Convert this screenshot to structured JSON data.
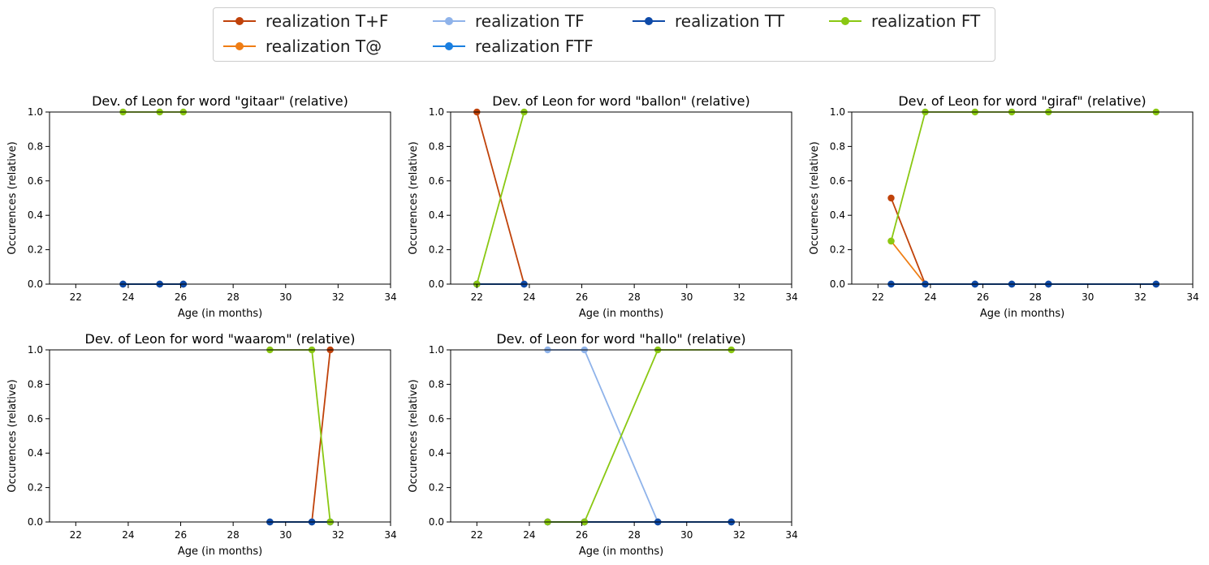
{
  "legend": {
    "series": [
      {
        "label": "realization T+F",
        "color": "#c0420a"
      },
      {
        "label": "realization T@",
        "color": "#ef7d14"
      },
      {
        "label": "realization TF",
        "color": "#8fb3ea"
      },
      {
        "label": "realization FTF",
        "color": "#1a7fe0"
      },
      {
        "label": "realization TT",
        "color": "#0e4aa8"
      },
      {
        "label": "realization FT",
        "color": "#8ac812"
      }
    ]
  },
  "chart_data": [
    {
      "type": "line",
      "title": "Dev. of Leon for word \"gitaar\" (relative)",
      "xlabel": "Age (in months)",
      "ylabel": "Occurences (relative)",
      "xlim": [
        21,
        34
      ],
      "ylim": [
        0,
        1
      ],
      "xticks": [
        "22",
        "24",
        "26",
        "28",
        "30",
        "32",
        "34"
      ],
      "yticks": [
        "0.0",
        "0.2",
        "0.4",
        "0.6",
        "0.8",
        "1.0"
      ],
      "x": [
        23.8,
        25.2,
        26.1
      ],
      "series": [
        {
          "name": "realization T+F",
          "values": [
            0,
            0,
            0
          ]
        },
        {
          "name": "realization T@",
          "values": [
            0,
            0,
            0
          ]
        },
        {
          "name": "realization TF",
          "values": [
            0,
            0,
            0
          ]
        },
        {
          "name": "realization FTF",
          "values": [
            0,
            0,
            0
          ]
        },
        {
          "name": "realization TT",
          "values": [
            0,
            0,
            0
          ]
        },
        {
          "name": "realization FT",
          "values": [
            1,
            1,
            1
          ]
        }
      ]
    },
    {
      "type": "line",
      "title": "Dev. of Leon for word \"ballon\" (relative)",
      "xlabel": "Age (in months)",
      "ylabel": "Occurences (relative)",
      "xlim": [
        21,
        34
      ],
      "ylim": [
        0,
        1
      ],
      "xticks": [
        "22",
        "24",
        "26",
        "28",
        "30",
        "32",
        "34"
      ],
      "yticks": [
        "0.0",
        "0.2",
        "0.4",
        "0.6",
        "0.8",
        "1.0"
      ],
      "x": [
        22.0,
        23.8
      ],
      "series": [
        {
          "name": "realization T+F",
          "values": [
            1,
            0
          ]
        },
        {
          "name": "realization T@",
          "values": [
            0,
            0
          ]
        },
        {
          "name": "realization TF",
          "values": [
            0,
            0
          ]
        },
        {
          "name": "realization FTF",
          "values": [
            0,
            0
          ]
        },
        {
          "name": "realization TT",
          "values": [
            0,
            0
          ]
        },
        {
          "name": "realization FT",
          "values": [
            0,
            1
          ]
        }
      ]
    },
    {
      "type": "line",
      "title": "Dev. of Leon for word \"giraf\" (relative)",
      "xlabel": "Age (in months)",
      "ylabel": "Occurences (relative)",
      "xlim": [
        21,
        34
      ],
      "ylim": [
        0,
        1
      ],
      "xticks": [
        "22",
        "24",
        "26",
        "28",
        "30",
        "32",
        "34"
      ],
      "yticks": [
        "0.0",
        "0.2",
        "0.4",
        "0.6",
        "0.8",
        "1.0"
      ],
      "x": [
        22.5,
        23.8,
        25.7,
        27.1,
        28.5,
        32.6
      ],
      "series": [
        {
          "name": "realization T+F",
          "values": [
            0.5,
            0,
            0,
            0,
            0,
            0
          ]
        },
        {
          "name": "realization T@",
          "values": [
            0.25,
            0,
            0,
            0,
            0,
            0
          ]
        },
        {
          "name": "realization TF",
          "values": [
            0,
            0,
            0,
            0,
            0,
            0
          ]
        },
        {
          "name": "realization FTF",
          "values": [
            0,
            0,
            0,
            0,
            0,
            0
          ]
        },
        {
          "name": "realization TT",
          "values": [
            0,
            0,
            0,
            0,
            0,
            0
          ]
        },
        {
          "name": "realization FT",
          "values": [
            0.25,
            1,
            1,
            1,
            1,
            1
          ]
        }
      ]
    },
    {
      "type": "line",
      "title": "Dev. of Leon for word \"waarom\" (relative)",
      "xlabel": "Age (in months)",
      "ylabel": "Occurences (relative)",
      "xlim": [
        21,
        34
      ],
      "ylim": [
        0,
        1
      ],
      "xticks": [
        "22",
        "24",
        "26",
        "28",
        "30",
        "32",
        "34"
      ],
      "yticks": [
        "0.0",
        "0.2",
        "0.4",
        "0.6",
        "0.8",
        "1.0"
      ],
      "x": [
        29.4,
        31.0,
        31.7
      ],
      "series": [
        {
          "name": "realization T+F",
          "values": [
            0,
            0,
            1
          ]
        },
        {
          "name": "realization T@",
          "values": [
            0,
            0,
            0
          ]
        },
        {
          "name": "realization TF",
          "values": [
            0,
            0,
            0
          ]
        },
        {
          "name": "realization FTF",
          "values": [
            0,
            0,
            0
          ]
        },
        {
          "name": "realization TT",
          "values": [
            0,
            0,
            0
          ]
        },
        {
          "name": "realization FT",
          "values": [
            1,
            1,
            0
          ]
        }
      ]
    },
    {
      "type": "line",
      "title": "Dev. of Leon for word \"hallo\" (relative)",
      "xlabel": "Age (in months)",
      "ylabel": "Occurences (relative)",
      "xlim": [
        21,
        34
      ],
      "ylim": [
        0,
        1
      ],
      "xticks": [
        "22",
        "24",
        "26",
        "28",
        "30",
        "32",
        "34"
      ],
      "yticks": [
        "0.0",
        "0.2",
        "0.4",
        "0.6",
        "0.8",
        "1.0"
      ],
      "x": [
        24.7,
        26.1,
        28.9,
        31.7
      ],
      "series": [
        {
          "name": "realization T+F",
          "values": [
            0,
            0,
            0,
            0
          ]
        },
        {
          "name": "realization T@",
          "values": [
            0,
            0,
            0,
            0
          ]
        },
        {
          "name": "realization TF",
          "values": [
            1,
            1,
            0,
            0
          ]
        },
        {
          "name": "realization FTF",
          "values": [
            0,
            0,
            0,
            0
          ]
        },
        {
          "name": "realization TT",
          "values": [
            0,
            0,
            0,
            0
          ]
        },
        {
          "name": "realization FT",
          "values": [
            0,
            0,
            1,
            1
          ]
        }
      ]
    }
  ]
}
